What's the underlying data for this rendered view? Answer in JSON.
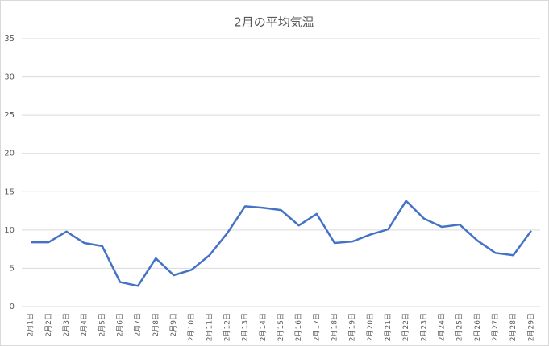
{
  "chart_data": {
    "type": "line",
    "title": "2月の平均気温",
    "categories": [
      "2月1日",
      "2月2日",
      "2月3日",
      "2月4日",
      "2月5日",
      "2月6日",
      "2月7日",
      "2月8日",
      "2月9日",
      "2月10日",
      "2月11日",
      "2月12日",
      "2月13日",
      "2月14日",
      "2月15日",
      "2月16日",
      "2月17日",
      "2月18日",
      "2月19日",
      "2月20日",
      "2月21日",
      "2月22日",
      "2月23日",
      "2月24日",
      "2月25日",
      "2月26日",
      "2月27日",
      "2月28日",
      "2月29日"
    ],
    "values": [
      8.4,
      8.4,
      9.8,
      8.3,
      7.9,
      3.2,
      2.7,
      6.3,
      4.1,
      4.8,
      6.7,
      9.6,
      13.1,
      12.9,
      12.6,
      10.6,
      12.1,
      8.3,
      8.5,
      9.4,
      10.1,
      13.8,
      11.5,
      10.4,
      10.7,
      8.6,
      7.0,
      6.7,
      9.9
    ],
    "color": "#4472c4",
    "ylim": [
      0,
      35
    ],
    "yticks": [
      0,
      5,
      10,
      15,
      20,
      25,
      30,
      35
    ],
    "grid": true
  }
}
